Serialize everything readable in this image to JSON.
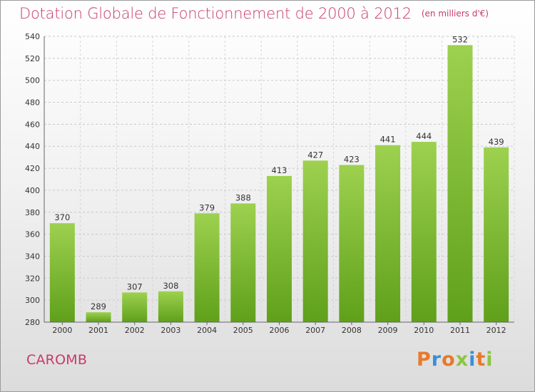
{
  "title": "Dotation Globale de Fonctionnement de 2000 à 2012",
  "unit_note": "(en milliers d'€)",
  "commune": "CAROMB",
  "logo": {
    "text": "Proxiti",
    "colors": [
      "#e8792a",
      "#3d8ed6",
      "#e8792a",
      "#8cc63e",
      "#3d8ed6",
      "#e8792a",
      "#8cc63e"
    ]
  },
  "colors": {
    "title": "#c83a6c",
    "bar_top": "#9dd14f",
    "bar_bottom": "#5fa01a"
  },
  "chart_data": {
    "type": "bar",
    "categories": [
      "2000",
      "2001",
      "2002",
      "2003",
      "2004",
      "2005",
      "2006",
      "2007",
      "2008",
      "2009",
      "2010",
      "2011",
      "2012"
    ],
    "values": [
      370,
      289,
      307,
      308,
      379,
      388,
      413,
      427,
      423,
      441,
      444,
      532,
      439
    ],
    "yticks": [
      280,
      300,
      320,
      340,
      360,
      380,
      400,
      420,
      440,
      460,
      480,
      500,
      520,
      540
    ],
    "ylim": [
      280,
      540
    ],
    "grid": true
  }
}
